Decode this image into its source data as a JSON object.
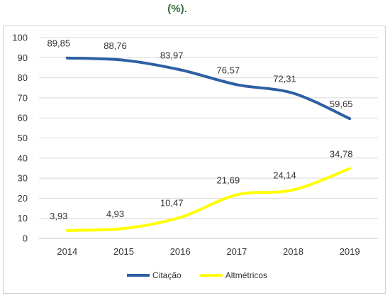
{
  "header": {
    "text": "(%)",
    "trailing": "."
  },
  "chart_data": {
    "type": "line",
    "x": [
      "2014",
      "2015",
      "2016",
      "2017",
      "2018",
      "2019"
    ],
    "series": [
      {
        "name": "Citação",
        "color": "#2e5fa3",
        "values": [
          89.85,
          88.76,
          83.97,
          76.57,
          72.31,
          59.65
        ],
        "labels": [
          "89,85",
          "88,76",
          "83,97",
          "76,57",
          "72,31",
          "59,65"
        ]
      },
      {
        "name": "Altmétricos",
        "color": "#ffff00",
        "values": [
          3.93,
          4.93,
          10.47,
          21.69,
          24.14,
          34.78
        ],
        "labels": [
          "3,93",
          "4,93",
          "10,47",
          "21,69",
          "24,14",
          "34,78"
        ]
      }
    ],
    "ylim": [
      0,
      100
    ],
    "yticks": [
      0,
      10,
      20,
      30,
      40,
      50,
      60,
      70,
      80,
      90,
      100
    ],
    "grid": true,
    "legend": "bottom"
  }
}
